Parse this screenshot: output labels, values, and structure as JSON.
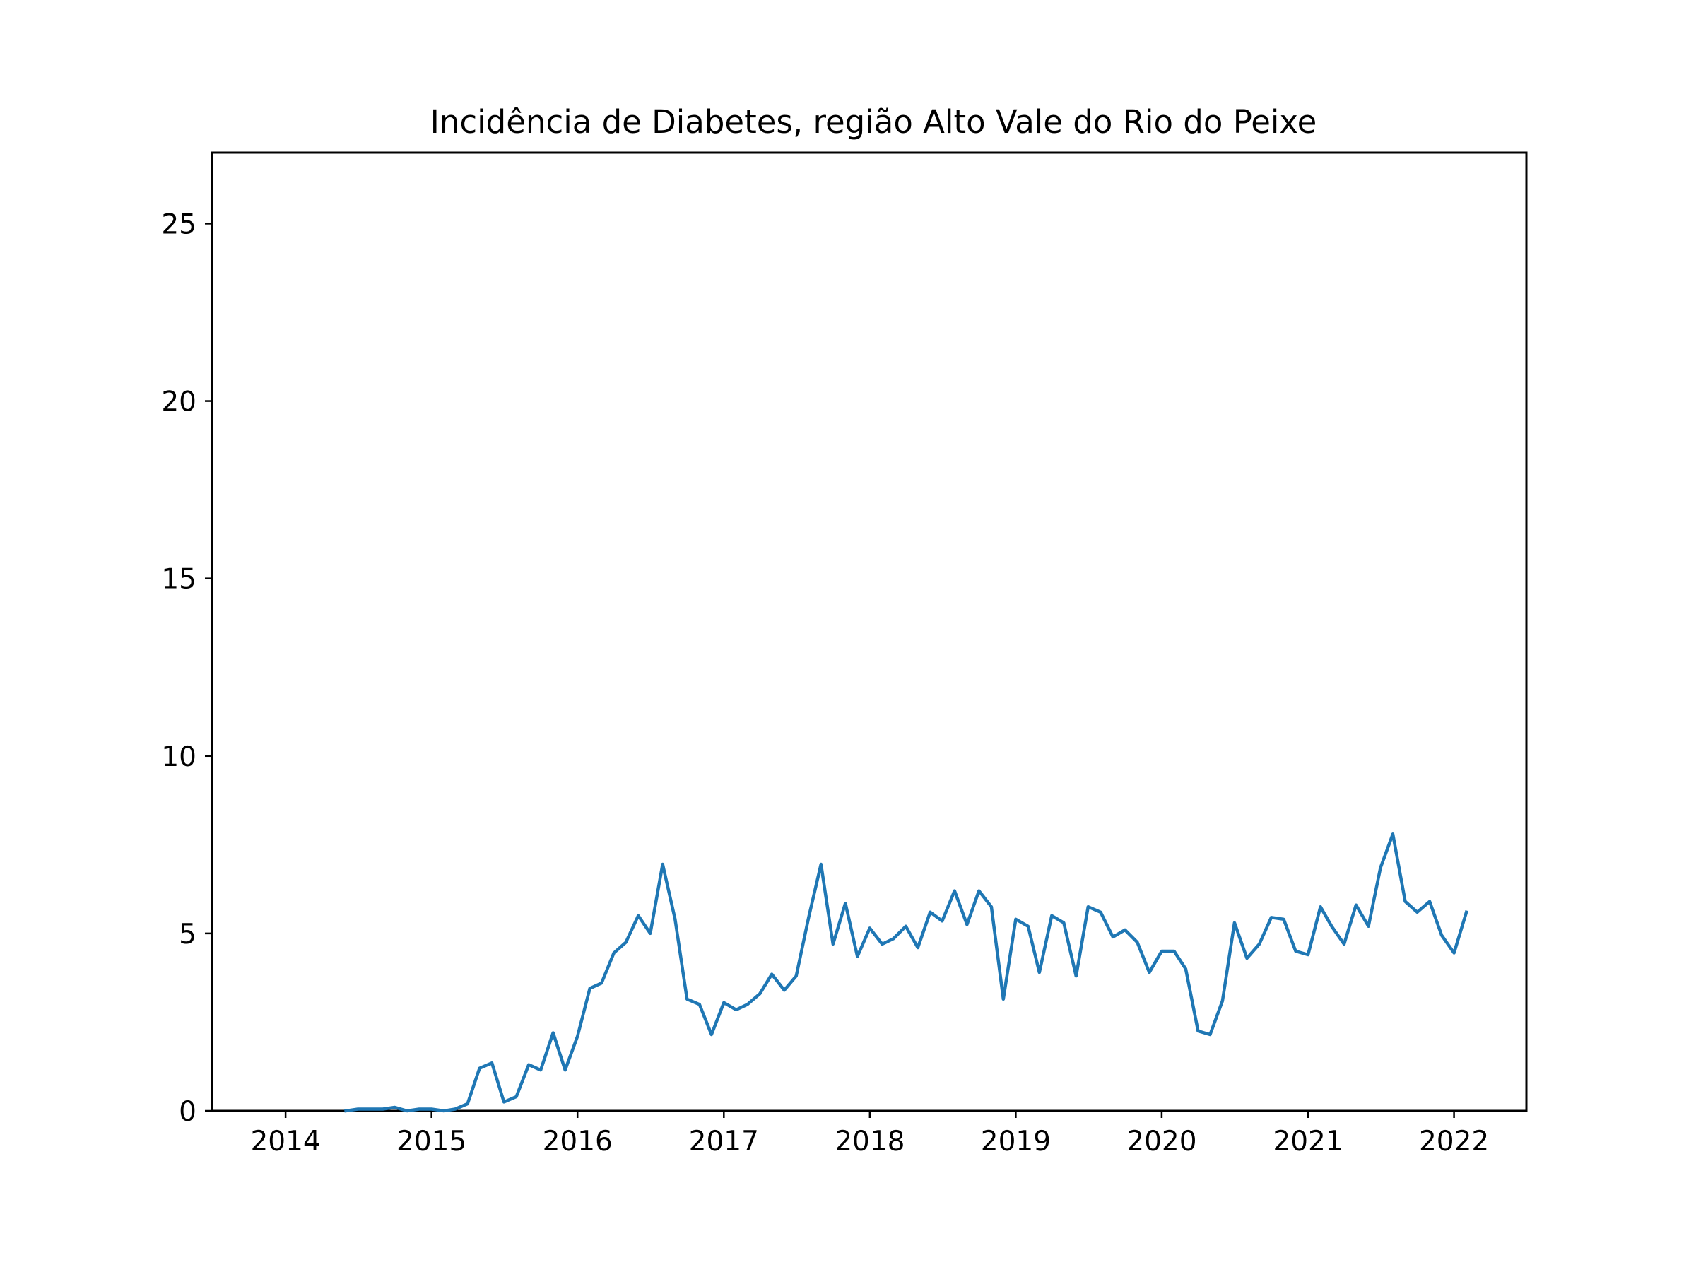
{
  "chart_data": {
    "type": "line",
    "title": "Incidência de Diabetes, região Alto Vale do Rio do Peixe",
    "xlabel": "",
    "ylabel": "",
    "x_ticks": [
      "2014",
      "2015",
      "2016",
      "2017",
      "2018",
      "2019",
      "2020",
      "2021",
      "2022"
    ],
    "y_ticks": [
      "0",
      "5",
      "10",
      "15",
      "20",
      "25"
    ],
    "xlim": [
      "2013-07-01",
      "2022-07-01"
    ],
    "ylim": [
      0,
      27
    ],
    "grid": false,
    "legend": "none",
    "series": [
      {
        "color": "#1f77b4",
        "points": [
          [
            "2014-06-01",
            0.0
          ],
          [
            "2014-07-01",
            0.05
          ],
          [
            "2014-08-01",
            0.05
          ],
          [
            "2014-09-01",
            0.05
          ],
          [
            "2014-10-01",
            0.1
          ],
          [
            "2014-11-01",
            0.0
          ],
          [
            "2014-12-01",
            0.05
          ],
          [
            "2015-01-01",
            0.05
          ],
          [
            "2015-02-01",
            0.0
          ],
          [
            "2015-03-01",
            0.05
          ],
          [
            "2015-04-01",
            0.2
          ],
          [
            "2015-05-01",
            1.2
          ],
          [
            "2015-06-01",
            1.35
          ],
          [
            "2015-07-01",
            0.25
          ],
          [
            "2015-08-01",
            0.4
          ],
          [
            "2015-09-01",
            1.3
          ],
          [
            "2015-10-01",
            1.15
          ],
          [
            "2015-11-01",
            2.2
          ],
          [
            "2015-12-01",
            1.15
          ],
          [
            "2016-01-01",
            2.1
          ],
          [
            "2016-02-01",
            3.45
          ],
          [
            "2016-03-01",
            3.6
          ],
          [
            "2016-04-01",
            4.45
          ],
          [
            "2016-05-01",
            4.75
          ],
          [
            "2016-06-01",
            5.5
          ],
          [
            "2016-07-01",
            5.0
          ],
          [
            "2016-08-01",
            6.95
          ],
          [
            "2016-09-01",
            5.4
          ],
          [
            "2016-10-01",
            3.15
          ],
          [
            "2016-11-01",
            3.0
          ],
          [
            "2016-12-01",
            2.15
          ],
          [
            "2017-01-01",
            3.05
          ],
          [
            "2017-02-01",
            2.85
          ],
          [
            "2017-03-01",
            3.0
          ],
          [
            "2017-04-01",
            3.3
          ],
          [
            "2017-05-01",
            3.85
          ],
          [
            "2017-06-01",
            3.4
          ],
          [
            "2017-07-01",
            3.8
          ],
          [
            "2017-08-01",
            5.45
          ],
          [
            "2017-09-01",
            6.95
          ],
          [
            "2017-10-01",
            4.7
          ],
          [
            "2017-11-01",
            5.85
          ],
          [
            "2017-12-01",
            4.35
          ],
          [
            "2018-01-01",
            5.15
          ],
          [
            "2018-02-01",
            4.7
          ],
          [
            "2018-03-01",
            4.85
          ],
          [
            "2018-04-01",
            5.2
          ],
          [
            "2018-05-01",
            4.6
          ],
          [
            "2018-06-01",
            5.6
          ],
          [
            "2018-07-01",
            5.35
          ],
          [
            "2018-08-01",
            6.2
          ],
          [
            "2018-09-01",
            5.25
          ],
          [
            "2018-10-01",
            6.2
          ],
          [
            "2018-11-01",
            5.75
          ],
          [
            "2018-12-01",
            3.15
          ],
          [
            "2019-01-01",
            5.4
          ],
          [
            "2019-02-01",
            5.2
          ],
          [
            "2019-03-01",
            3.9
          ],
          [
            "2019-04-01",
            5.5
          ],
          [
            "2019-05-01",
            5.3
          ],
          [
            "2019-06-01",
            3.8
          ],
          [
            "2019-07-01",
            5.75
          ],
          [
            "2019-08-01",
            5.6
          ],
          [
            "2019-09-01",
            4.9
          ],
          [
            "2019-10-01",
            5.1
          ],
          [
            "2019-11-01",
            4.75
          ],
          [
            "2019-12-01",
            3.9
          ],
          [
            "2020-01-01",
            4.5
          ],
          [
            "2020-02-01",
            4.5
          ],
          [
            "2020-03-01",
            4.0
          ],
          [
            "2020-04-01",
            2.25
          ],
          [
            "2020-05-01",
            2.15
          ],
          [
            "2020-06-01",
            3.1
          ],
          [
            "2020-07-01",
            5.3
          ],
          [
            "2020-08-01",
            4.3
          ],
          [
            "2020-09-01",
            4.7
          ],
          [
            "2020-10-01",
            5.45
          ],
          [
            "2020-11-01",
            5.4
          ],
          [
            "2020-12-01",
            4.5
          ],
          [
            "2021-01-01",
            4.4
          ],
          [
            "2021-02-01",
            5.75
          ],
          [
            "2021-03-01",
            5.2
          ],
          [
            "2021-04-01",
            4.7
          ],
          [
            "2021-05-01",
            5.8
          ],
          [
            "2021-06-01",
            5.2
          ],
          [
            "2021-07-01",
            6.85
          ],
          [
            "2021-08-01",
            7.8
          ],
          [
            "2021-09-01",
            5.9
          ],
          [
            "2021-10-01",
            5.6
          ],
          [
            "2021-11-01",
            5.9
          ],
          [
            "2021-12-01",
            4.95
          ],
          [
            "2022-01-01",
            4.45
          ],
          [
            "2022-02-01",
            5.6
          ]
        ]
      }
    ]
  }
}
